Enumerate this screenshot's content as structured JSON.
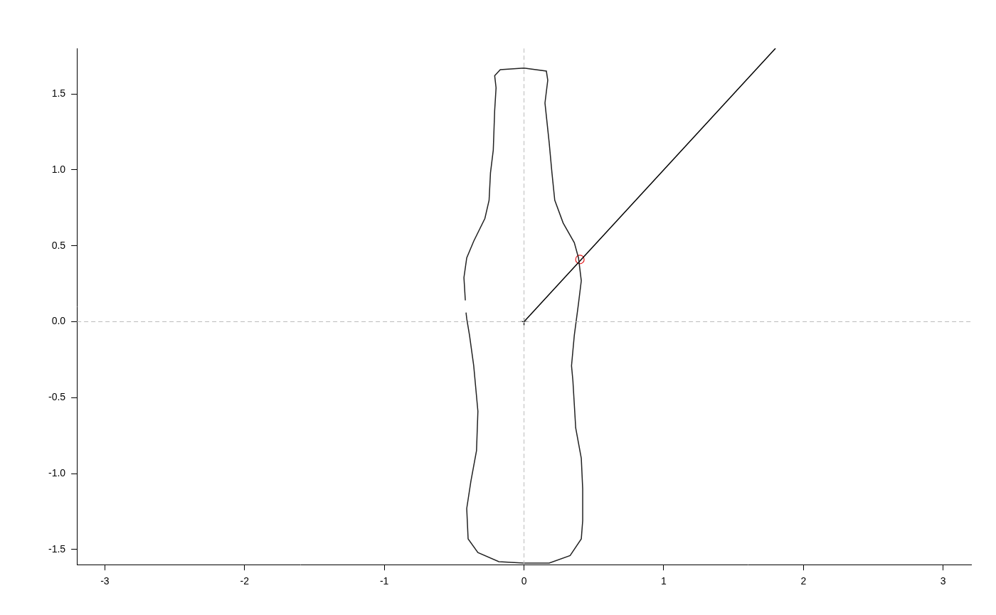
{
  "chart_data": {
    "type": "scatter",
    "xlim": [
      -3.2,
      3.2
    ],
    "ylim": [
      -1.6,
      1.8
    ],
    "xticks": [
      -3,
      -2,
      -1,
      0,
      1,
      2,
      3
    ],
    "yticks": [
      {
        "value": -1.5,
        "label": "-1.5"
      },
      {
        "value": -1,
        "label": "-1.0"
      },
      {
        "value": -0.5,
        "label": "-0.5"
      },
      {
        "value": 0,
        "label": "0.0"
      },
      {
        "value": 0.5,
        "label": "0.5"
      },
      {
        "value": 1,
        "label": "1.0"
      },
      {
        "value": 1.5,
        "label": "1.5"
      }
    ],
    "grid": false,
    "hlines": [
      0
    ],
    "vlines": [
      0
    ],
    "reference_color": "#bbbbbb",
    "series": [
      {
        "type": "line",
        "color": "#222222",
        "marker": "none",
        "line_style": "solid",
        "x": [
          -0.42,
          -0.43,
          -0.41,
          -0.36,
          -0.28,
          -0.25,
          -0.24,
          -0.22,
          -0.21,
          -0.2,
          -0.21,
          -0.17,
          0,
          0.16,
          0.17,
          0.15,
          0.18,
          0.2,
          0.22,
          0.28,
          0.36,
          0.39,
          0.41,
          0.39,
          0.36,
          0.34,
          0.35,
          0.37,
          0.41,
          0.42,
          0.42,
          0.41,
          0.33,
          0.18,
          0,
          -0.18,
          -0.33,
          -0.4,
          -0.41,
          -0.38,
          -0.34,
          -0.33,
          -0.36,
          -0.39,
          -0.41,
          -0.415
        ],
        "values": [
          0.14,
          0.29,
          0.42,
          0.53,
          0.68,
          0.8,
          0.98,
          1.13,
          1.39,
          1.54,
          1.62,
          1.66,
          1.67,
          1.65,
          1.59,
          1.44,
          1.18,
          0.98,
          0.8,
          0.65,
          0.52,
          0.42,
          0.27,
          0.12,
          -0.09,
          -0.29,
          -0.39,
          -0.7,
          -0.9,
          -1.1,
          -1.31,
          -1.43,
          -1.54,
          -1.59,
          -1.59,
          -1.58,
          -1.52,
          -1.43,
          -1.23,
          -1.05,
          -0.85,
          -0.59,
          -0.29,
          -0.09,
          0.02,
          0.06
        ]
      },
      {
        "type": "line",
        "color": "#000000",
        "marker": "none",
        "line_style": "solid",
        "x": [
          0,
          1.8
        ],
        "values": [
          0,
          1.8
        ]
      },
      {
        "type": "scatter",
        "color": "#000000",
        "marker": "plus",
        "line_style": "none",
        "x": [
          0
        ],
        "values": [
          0
        ]
      },
      {
        "type": "scatter",
        "color": "#e31a1c",
        "marker": "circle_open",
        "line_style": "none",
        "x": [
          0.4
        ],
        "values": [
          0.41
        ]
      }
    ]
  }
}
